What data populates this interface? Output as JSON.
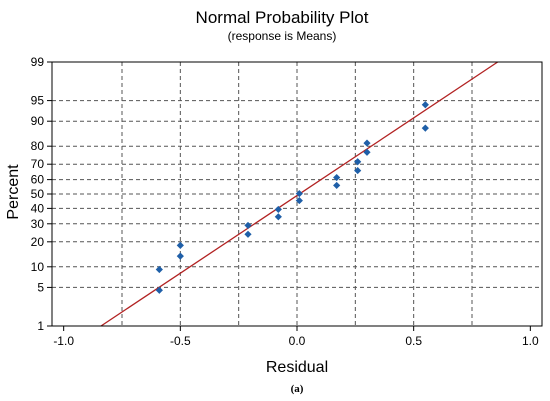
{
  "chart_data": {
    "type": "scatter",
    "title": "Normal Probability Plot",
    "subtitle": "(response is Means)",
    "xlabel": "Residual",
    "ylabel": "Percent",
    "caption": "(a)",
    "xlim": [
      -1.05,
      1.05
    ],
    "ylim_percent": [
      1,
      99
    ],
    "x_ticks": [
      {
        "value": -1.0,
        "label": "-1.0"
      },
      {
        "value": -0.5,
        "label": "-0.5"
      },
      {
        "value": 0.0,
        "label": "0.0"
      },
      {
        "value": 0.5,
        "label": "0.5"
      },
      {
        "value": 1.0,
        "label": "1.0"
      }
    ],
    "y_ticks": [
      {
        "value": 1,
        "label": "1"
      },
      {
        "value": 5,
        "label": "5"
      },
      {
        "value": 10,
        "label": "10"
      },
      {
        "value": 20,
        "label": "20"
      },
      {
        "value": 30,
        "label": "30"
      },
      {
        "value": 40,
        "label": "40"
      },
      {
        "value": 50,
        "label": "50"
      },
      {
        "value": 60,
        "label": "60"
      },
      {
        "value": 70,
        "label": "70"
      },
      {
        "value": 80,
        "label": "80"
      },
      {
        "value": 90,
        "label": "90"
      },
      {
        "value": 95,
        "label": "95"
      },
      {
        "value": 99,
        "label": "99"
      }
    ],
    "x_gridlines": [
      -0.75,
      -0.5,
      -0.25,
      0.0,
      0.25,
      0.5,
      0.75
    ],
    "grid": true,
    "grid_style": "dashed",
    "points": [
      {
        "x": -0.59,
        "y": 4.5
      },
      {
        "x": -0.59,
        "y": 9.2
      },
      {
        "x": -0.5,
        "y": 13.7
      },
      {
        "x": -0.5,
        "y": 18.3
      },
      {
        "x": -0.21,
        "y": 23.9
      },
      {
        "x": -0.21,
        "y": 29.0
      },
      {
        "x": -0.08,
        "y": 34.4
      },
      {
        "x": -0.08,
        "y": 39.3
      },
      {
        "x": 0.01,
        "y": 45.4
      },
      {
        "x": 0.01,
        "y": 50.3
      },
      {
        "x": 0.17,
        "y": 56.0
      },
      {
        "x": 0.17,
        "y": 61.4
      },
      {
        "x": 0.26,
        "y": 66.0
      },
      {
        "x": 0.26,
        "y": 71.5
      },
      {
        "x": 0.3,
        "y": 76.9
      },
      {
        "x": 0.3,
        "y": 81.5
      },
      {
        "x": 0.55,
        "y": 87.7
      },
      {
        "x": 0.55,
        "y": 94.2
      }
    ],
    "fit_line": {
      "x_at_1pct": -0.84,
      "x_at_99pct": 0.86
    },
    "colors": {
      "points": "#1f5fa8",
      "fit_line": "#b22222",
      "grid": "#555555",
      "axis": "#000000"
    }
  }
}
